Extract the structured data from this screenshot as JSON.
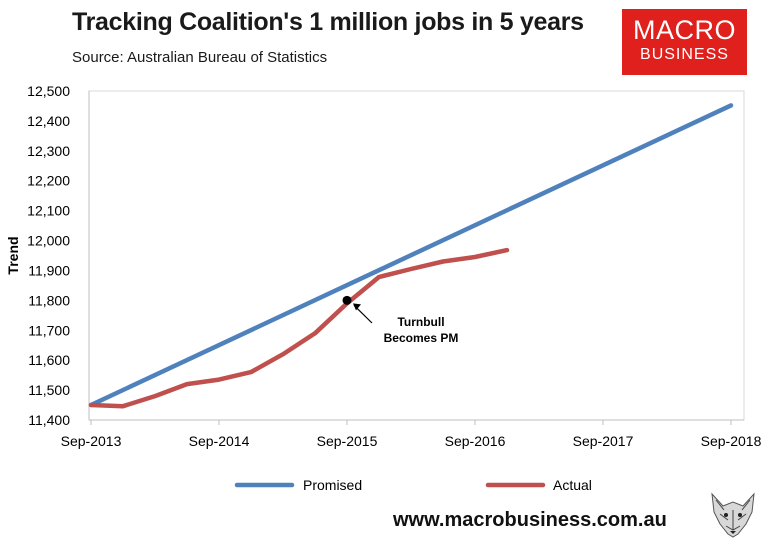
{
  "header": {
    "title": "Tracking Coalition's 1 million jobs in 5 years",
    "source": "Source: Australian Bureau of Statistics"
  },
  "logo": {
    "line1": "MACRO",
    "line2": "BUSINESS",
    "color": "#e0201c"
  },
  "footer": {
    "website": "www.macrobusiness.com.au"
  },
  "chart_data": {
    "type": "line",
    "ylabel": "Trend",
    "xlabel": "",
    "ylim": [
      11400,
      12500
    ],
    "y_ticks": [
      11400,
      11500,
      11600,
      11700,
      11800,
      11900,
      12000,
      12100,
      12200,
      12300,
      12400,
      12500
    ],
    "y_tick_labels": [
      "11,400",
      "11,500",
      "11,600",
      "11,700",
      "11,800",
      "11,900",
      "12,000",
      "12,100",
      "12,200",
      "12,300",
      "12,400",
      "12,500"
    ],
    "x_range": [
      "Sep-2013",
      "Sep-2018"
    ],
    "x_tick_labels": [
      "Sep-2013",
      "Sep-2014",
      "Sep-2015",
      "Sep-2016",
      "Sep-2017",
      "Sep-2018"
    ],
    "grid": false,
    "legend_position": "bottom",
    "series": [
      {
        "name": "Promised",
        "color": "#4f81bd",
        "points": [
          [
            "Sep-2013",
            11450
          ],
          [
            "Sep-2018",
            12452
          ]
        ]
      },
      {
        "name": "Actual",
        "color": "#c0504d",
        "points": [
          [
            "Sep-2013",
            11450
          ],
          [
            "Dec-2013",
            11446
          ],
          [
            "Mar-2014",
            11480
          ],
          [
            "Jun-2014",
            11520
          ],
          [
            "Sep-2014",
            11535
          ],
          [
            "Dec-2014",
            11560
          ],
          [
            "Mar-2015",
            11620
          ],
          [
            "Jun-2015",
            11690
          ],
          [
            "Sep-2015",
            11790
          ],
          [
            "Dec-2015",
            11878
          ],
          [
            "Mar-2016",
            11905
          ],
          [
            "Jun-2016",
            11930
          ],
          [
            "Sep-2016",
            11945
          ],
          [
            "Dec-2016",
            11968
          ]
        ]
      }
    ],
    "annotations": [
      {
        "label_line1": "Turnbull",
        "label_line2": "Becomes PM",
        "x": "Sep-2015",
        "y": 11800
      }
    ]
  }
}
